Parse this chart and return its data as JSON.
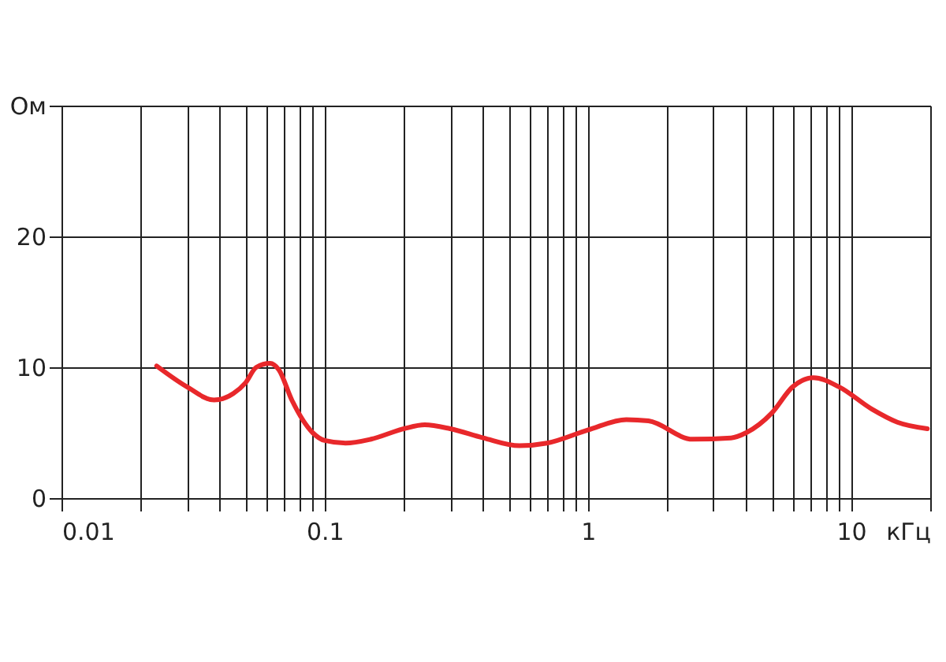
{
  "chart_data": {
    "type": "line",
    "log": "x",
    "grid": true,
    "line_style": "solid",
    "marker": "none",
    "xlim": [
      0.01,
      20
    ],
    "xticks": [
      0.01,
      {
        "value": 0.02,
        "label": null
      },
      {
        "value": 0.03,
        "label": null
      },
      {
        "value": 0.04,
        "label": null
      },
      {
        "value": 0.05,
        "label": null
      },
      {
        "value": 0.06,
        "label": null
      },
      {
        "value": 0.07,
        "label": null
      },
      {
        "value": 0.08,
        "label": null
      },
      {
        "value": 0.09,
        "label": null
      },
      0.1,
      {
        "value": 0.2,
        "label": null
      },
      {
        "value": 0.3,
        "label": null
      },
      {
        "value": 0.4,
        "label": null
      },
      {
        "value": 0.5,
        "label": null
      },
      {
        "value": 0.6,
        "label": null
      },
      {
        "value": 0.7,
        "label": null
      },
      {
        "value": 0.8,
        "label": null
      },
      {
        "value": 0.9,
        "label": null
      },
      1,
      {
        "value": 2,
        "label": null
      },
      {
        "value": 3,
        "label": null
      },
      {
        "value": 4,
        "label": null
      },
      {
        "value": 5,
        "label": null
      },
      {
        "value": 6,
        "label": null
      },
      {
        "value": 7,
        "label": null
      },
      {
        "value": 8,
        "label": null
      },
      {
        "value": 9,
        "label": null
      },
      10,
      {
        "value": 20,
        "label": "кГц"
      }
    ],
    "ylim": [
      0,
      30
    ],
    "yticks": [
      0,
      10,
      20,
      {
        "value": 30,
        "label": "Ом"
      }
    ],
    "series": [
      {
        "color": "#e8282b",
        "x": [
          0.023,
          0.03,
          0.038,
          0.045,
          0.05,
          0.055,
          0.062,
          0.067,
          0.075,
          0.09,
          0.1,
          0.12,
          0.15,
          0.2,
          0.24,
          0.3,
          0.4,
          0.55,
          0.7,
          1.0,
          1.4,
          1.7,
          2.5,
          3.5,
          4,
          5,
          6,
          7.2,
          9,
          12,
          15,
          19.5
        ],
        "values": [
          10.1,
          8.5,
          7.5,
          8.0,
          8.8,
          10.0,
          10.3,
          9.8,
          7.5,
          5.0,
          4.4,
          4.2,
          4.5,
          5.3,
          5.6,
          5.3,
          4.6,
          4.0,
          4.2,
          5.2,
          6.0,
          5.9,
          4.5,
          4.6,
          5.0,
          6.5,
          8.5,
          9.2,
          8.5,
          6.8,
          5.8,
          5.3
        ]
      }
    ]
  }
}
